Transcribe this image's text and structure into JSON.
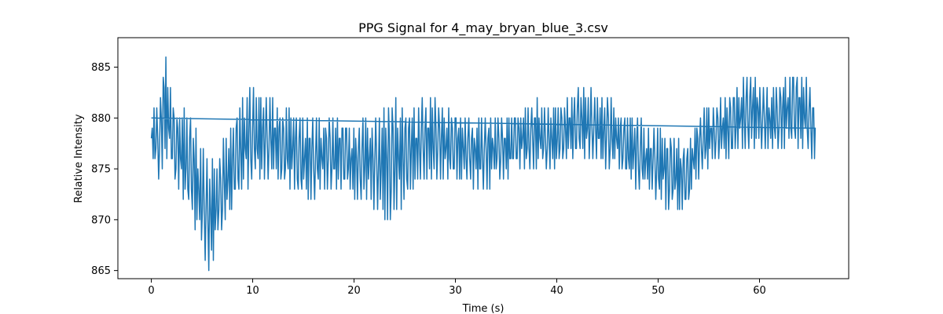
{
  "chart_data": {
    "type": "line",
    "title": "PPG Signal for 4_may_bryan_blue_3.csv",
    "xlabel": "Time (s)",
    "ylabel": "Relative Intensity",
    "xlim": [
      -3.3,
      68.8
    ],
    "ylim": [
      864.2,
      887.9
    ],
    "xticks": [
      0,
      10,
      20,
      30,
      40,
      50,
      60
    ],
    "yticks": [
      865,
      870,
      875,
      880,
      885
    ],
    "grid": false,
    "legend": "none",
    "series": [
      {
        "color": "#1f77b4",
        "x": [
          0.0,
          0.4,
          0.9,
          1.2,
          1.6,
          2.1,
          2.6,
          3.1,
          3.6,
          4.1,
          4.6,
          5.1,
          5.6,
          6.1,
          6.6,
          7.1,
          7.6,
          8.1,
          8.6,
          9.1,
          9.6,
          10.1,
          11.0,
          12.0,
          13.0,
          14.0,
          15.0,
          16.0,
          17.0,
          18.0,
          19.0,
          20.0,
          21.0,
          22.0,
          23.0,
          23.5,
          24.0,
          25.0,
          26.0,
          27.0,
          28.0,
          29.0,
          30.0,
          31.0,
          32.0,
          33.0,
          34.0,
          35.0,
          36.0,
          37.0,
          38.0,
          39.0,
          40.0,
          41.0,
          42.0,
          43.0,
          44.0,
          45.0,
          46.0,
          47.0,
          48.0,
          49.0,
          50.0,
          51.0,
          52.0,
          53.0,
          53.8,
          54.5,
          55.5,
          56.5,
          57.5,
          58.5,
          59.5,
          60.5,
          61.5,
          62.5,
          63.5,
          64.5,
          65.5
        ],
        "y_high": [
          880,
          881,
          882,
          887,
          885,
          882,
          881,
          881,
          880,
          880,
          878,
          877,
          876,
          876,
          876,
          878,
          879,
          880,
          881,
          882,
          883,
          883,
          882,
          882,
          881,
          881,
          880,
          880,
          880,
          880,
          880,
          879,
          880,
          880,
          881,
          882,
          882,
          881,
          881,
          882,
          882,
          881,
          881,
          880,
          880,
          880,
          880,
          880,
          881,
          881,
          882,
          881,
          881,
          882,
          883,
          883,
          882,
          882,
          881,
          880,
          880,
          879,
          879,
          879,
          878,
          877,
          880,
          881,
          881,
          882,
          883,
          884,
          884,
          883,
          883,
          884,
          885,
          884,
          882
        ],
        "y_low": [
          875,
          875,
          874,
          876,
          876,
          874,
          873,
          872,
          871,
          870,
          868,
          867,
          865,
          866,
          868,
          869,
          870,
          871,
          872,
          873,
          873,
          874,
          874,
          874,
          873,
          873,
          872,
          872,
          873,
          873,
          873,
          872,
          872,
          871,
          870,
          869,
          870,
          872,
          873,
          874,
          874,
          874,
          874,
          874,
          873,
          873,
          874,
          874,
          875,
          875,
          875,
          875,
          875,
          876,
          876,
          876,
          876,
          875,
          875,
          874,
          873,
          873,
          872,
          871,
          871,
          871,
          874,
          875,
          876,
          876,
          876,
          877,
          877,
          877,
          877,
          877,
          877,
          877,
          876
        ],
        "return_line": {
          "x": [
            65.5,
            0.0
          ],
          "y": [
            879.0,
            880.0
          ]
        }
      }
    ]
  }
}
